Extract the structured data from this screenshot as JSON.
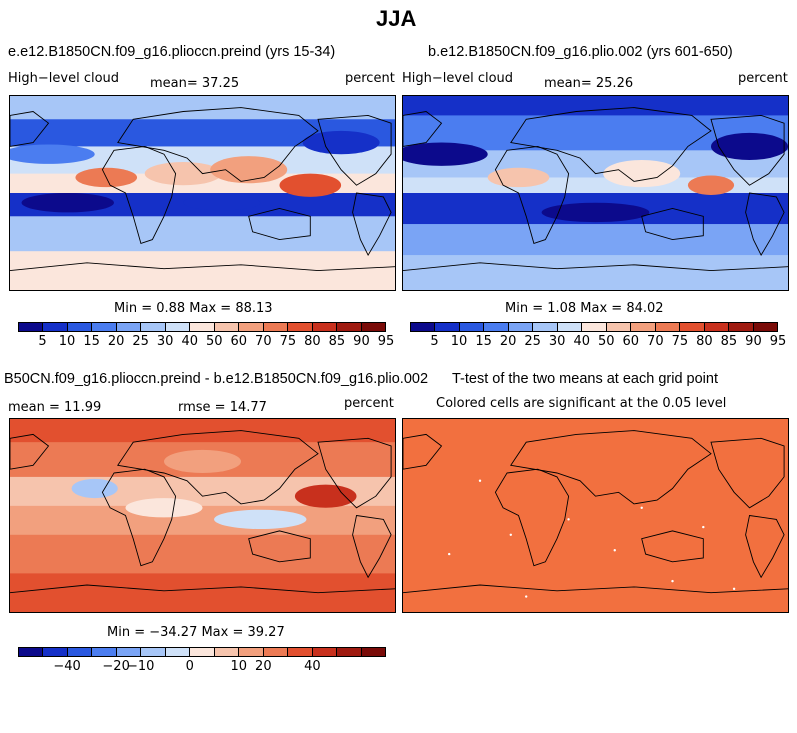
{
  "figure": {
    "title": "JJA"
  },
  "palette": {
    "abs": [
      "#0c0a8c",
      "#1530c8",
      "#2a58e0",
      "#4b7df0",
      "#7aa4f5",
      "#a7c6f7",
      "#cfe1f8",
      "#fbe6dc",
      "#f6c4ad",
      "#f2a07e",
      "#ec7a54",
      "#e2502f",
      "#c8301d",
      "#9f1a10",
      "#7a0b08"
    ],
    "diff": [
      "#0c0a8c",
      "#1530c8",
      "#2a58e0",
      "#4b7df0",
      "#7aa4f5",
      "#a7c6f7",
      "#cfe1f8",
      "#fbe6dc",
      "#f6c4ad",
      "#f2a07e",
      "#ec7a54",
      "#e2502f",
      "#c8301d",
      "#9f1a10",
      "#7a0b08"
    ],
    "sig": "#f2703f"
  },
  "panels": {
    "p1": {
      "title": "e.e12.B1850CN.f09_g16.plioccn.preind (yrs 15-34)",
      "left": "High−level cloud",
      "mean_label": "mean=  37.25",
      "right": "percent",
      "minmax": "Min =    0.88 Max =  88.13"
    },
    "p2": {
      "title": "b.e12.B1850CN.f09_g16.plio.002 (yrs 601-650)",
      "left": "High−level cloud",
      "mean_label": "mean=  25.26",
      "right": "percent",
      "minmax": "Min =    1.08 Max =  84.02"
    },
    "p3": {
      "title": "B50CN.f09_g16.plioccn.preind - b.e12.B1850CN.f09_g16.plio.002",
      "left": "mean =  11.99",
      "mid": "rmse =  14.77",
      "right": "percent",
      "minmax": "Min = −34.27 Max =  39.27"
    },
    "p4": {
      "title": "T-test of the two means at each grid point",
      "left": "Colored cells are significant at the 0.05 level"
    }
  },
  "chart_data": [
    {
      "type": "heatmap",
      "title": "e.e12.B1850CN.f09_g16.plioccn.preind (yrs 15-34)",
      "variable": "High−level cloud",
      "units": "percent",
      "mean": 37.25,
      "min": 0.88,
      "max": 88.13,
      "colorbar_ticks": [
        "5",
        "10",
        "15",
        "20",
        "25",
        "30",
        "40",
        "50",
        "60",
        "70",
        "75",
        "80",
        "85",
        "90",
        "95"
      ]
    },
    {
      "type": "heatmap",
      "title": "b.e12.B1850CN.f09_g16.plio.002 (yrs 601-650)",
      "variable": "High−level cloud",
      "units": "percent",
      "mean": 25.26,
      "min": 1.08,
      "max": 84.02,
      "colorbar_ticks": [
        "5",
        "10",
        "15",
        "20",
        "25",
        "30",
        "40",
        "50",
        "60",
        "70",
        "75",
        "80",
        "85",
        "90",
        "95"
      ]
    },
    {
      "type": "heatmap",
      "title": "B50CN.f09_g16.plioccn.preind - b.e12.B1850CN.f09_g16.plio.002",
      "units": "percent",
      "mean": 11.99,
      "rmse": 14.77,
      "min": -34.27,
      "max": 39.27,
      "colorbar_ticks": [
        "−40",
        "−20",
        "−10",
        "0",
        "10",
        "20",
        "40"
      ]
    },
    {
      "type": "heatmap",
      "title": "T-test of the two means at each grid point",
      "note": "Colored cells are significant at the 0.05 level"
    }
  ]
}
